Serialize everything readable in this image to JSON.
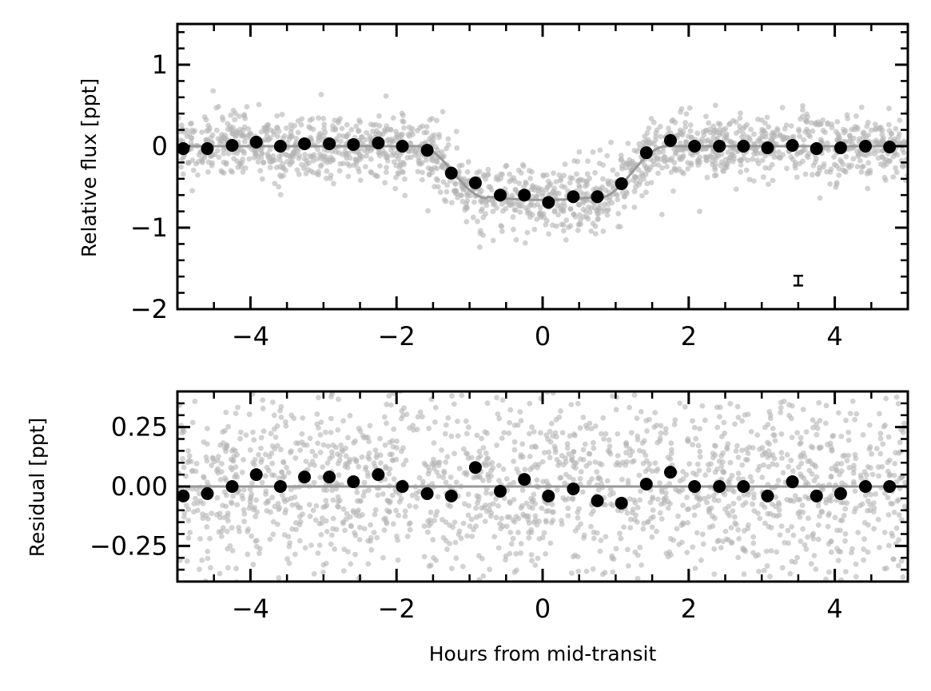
{
  "chart_data": [
    {
      "type": "scatter",
      "ylabel": "Relative flux [ppt]",
      "xlabel": "",
      "xlim": [
        -5.0,
        5.0
      ],
      "ylim": [
        -2.0,
        1.5
      ],
      "x_ticks": [
        -4,
        -2,
        0,
        2,
        4
      ],
      "x_tick_labels": [
        "−4",
        "−2",
        "0",
        "2",
        "4"
      ],
      "y_ticks": [
        1,
        0,
        -1,
        -2
      ],
      "y_tick_labels": [
        "1",
        "0",
        "−1",
        "−2"
      ],
      "grid": false,
      "colors": {
        "raw": "#b4b4b4",
        "binned": "#000000",
        "model": "#999999"
      },
      "model": {
        "description_free": true,
        "depth": 0.64,
        "t1": -1.7,
        "t2": -0.75,
        "t3": 0.75,
        "t4": 1.7
      },
      "binned": {
        "x": [
          -4.92,
          -4.59,
          -4.25,
          -3.92,
          -3.59,
          -3.26,
          -2.92,
          -2.59,
          -2.25,
          -1.92,
          -1.58,
          -1.25,
          -0.92,
          -0.58,
          -0.25,
          0.08,
          0.42,
          0.75,
          1.08,
          1.42,
          1.75,
          2.08,
          2.42,
          2.75,
          3.08,
          3.42,
          3.75,
          4.08,
          4.42,
          4.75
        ],
        "y": [
          -0.03,
          -0.03,
          0.01,
          0.05,
          0.0,
          0.03,
          0.03,
          0.02,
          0.04,
          0.0,
          -0.05,
          -0.33,
          -0.45,
          -0.6,
          -0.6,
          -0.69,
          -0.62,
          -0.62,
          -0.46,
          -0.08,
          0.07,
          0.0,
          0.0,
          0.0,
          -0.02,
          0.01,
          -0.03,
          -0.02,
          0.0,
          -0.01
        ]
      },
      "error_bar": {
        "x": 3.5,
        "y": -1.65,
        "err": 0.06
      },
      "raw_scatter": {
        "n_points": 1800,
        "scatter_ppt": 0.33
      }
    },
    {
      "type": "scatter",
      "ylabel": "Residual [ppt]",
      "xlabel": "Hours from mid-transit",
      "xlim": [
        -5.0,
        5.0
      ],
      "ylim": [
        -0.4,
        0.4
      ],
      "x_ticks": [
        -4,
        -2,
        0,
        2,
        4
      ],
      "x_tick_labels": [
        "−4",
        "−2",
        "0",
        "2",
        "4"
      ],
      "y_ticks": [
        0.25,
        0.0,
        -0.25
      ],
      "y_tick_labels": [
        "0.25",
        "0.00",
        "−0.25"
      ],
      "grid": false,
      "colors": {
        "raw": "#b4b4b4",
        "binned": "#000000",
        "model": "#999999"
      },
      "zero_line": 0.0,
      "binned": {
        "x": [
          -4.92,
          -4.59,
          -4.25,
          -3.92,
          -3.59,
          -3.26,
          -2.92,
          -2.59,
          -2.25,
          -1.92,
          -1.58,
          -1.25,
          -0.92,
          -0.58,
          -0.25,
          0.08,
          0.42,
          0.75,
          1.08,
          1.42,
          1.75,
          2.08,
          2.42,
          2.75,
          3.08,
          3.42,
          3.75,
          4.08,
          4.42,
          4.75
        ],
        "y": [
          -0.04,
          -0.03,
          0.0,
          0.05,
          0.0,
          0.04,
          0.04,
          0.02,
          0.05,
          0.0,
          -0.03,
          -0.04,
          0.08,
          -0.02,
          0.03,
          -0.04,
          -0.01,
          -0.06,
          -0.07,
          0.01,
          0.06,
          0.0,
          0.0,
          0.0,
          -0.04,
          0.02,
          -0.04,
          -0.03,
          0.0,
          0.0
        ]
      },
      "raw_scatter": {
        "n_points": 1800,
        "scatter_ppt": 0.33
      }
    }
  ]
}
